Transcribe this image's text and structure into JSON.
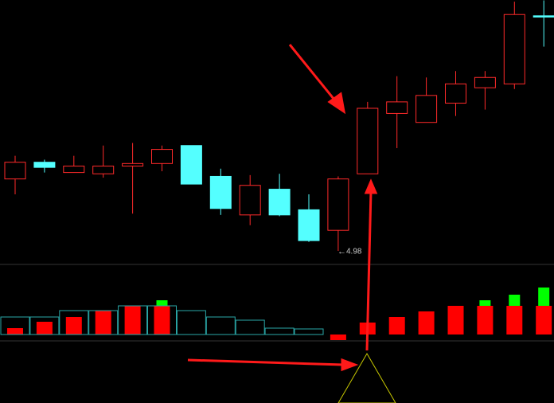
{
  "chart_data": [
    {
      "type": "candlestick",
      "ylim": [
        4.887,
        6.933
      ],
      "up_color": "#ff2a2a",
      "down_color": "#54ffff",
      "open": [
        5.54,
        5.67,
        5.59,
        5.58,
        5.64,
        5.66,
        5.8,
        5.56,
        5.26,
        5.46,
        5.3,
        5.14,
        5.58,
        6.05,
        5.98,
        6.13,
        6.25,
        6.28,
        6.81
      ],
      "close": [
        5.67,
        5.63,
        5.64,
        5.64,
        5.66,
        5.77,
        5.5,
        5.31,
        5.49,
        5.26,
        5.06,
        5.54,
        6.09,
        6.14,
        6.19,
        6.28,
        6.33,
        6.82,
        6.8
      ],
      "high": [
        5.72,
        5.69,
        5.72,
        5.8,
        5.82,
        5.8,
        5.8,
        5.62,
        5.57,
        5.58,
        5.42,
        5.56,
        6.14,
        6.34,
        6.33,
        6.38,
        6.38,
        6.92,
        6.93
      ],
      "low": [
        5.42,
        5.59,
        5.59,
        5.55,
        5.27,
        5.6,
        5.5,
        5.26,
        5.18,
        5.25,
        5.05,
        4.98,
        5.58,
        5.78,
        5.98,
        6.03,
        6.08,
        6.24,
        6.57
      ],
      "annotation": "4.98"
    },
    {
      "type": "bar",
      "ylim": [
        -8,
        88
      ],
      "series": [
        {
          "color": "#ff0000",
          "values": [
            8,
            16,
            22,
            30,
            36,
            36,
            null,
            null,
            null,
            null,
            null,
            -7,
            15,
            22,
            29,
            36,
            36,
            36,
            36
          ]
        },
        {
          "color": "#00ff00",
          "values": [
            null,
            null,
            null,
            null,
            null,
            7,
            null,
            null,
            null,
            null,
            null,
            null,
            null,
            null,
            null,
            null,
            7,
            14,
            23
          ]
        },
        {
          "color": "#2aa7a7",
          "values": [
            22,
            22,
            30,
            30,
            36,
            36,
            30,
            22,
            18,
            8,
            7,
            null,
            null,
            null,
            null,
            null,
            null,
            null,
            null
          ]
        }
      ]
    }
  ]
}
